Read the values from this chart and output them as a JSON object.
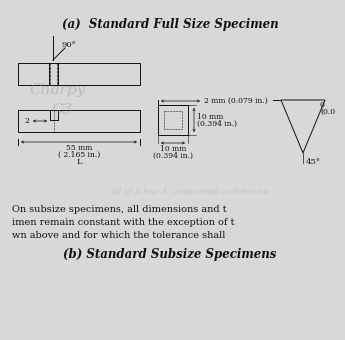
{
  "title_a": "(a)  Standard Full Size Specimen",
  "title_b": "(b) Standard Subsize Specimens",
  "body_line1": "On subsize specimens, all dimensions and t",
  "body_line2": "imen remain constant with the exception of t",
  "body_line3": "wn above and for which the tolerance shall",
  "watermark_line1": "Charpy",
  "watermark_line2": "C3",
  "watermark_faint": "all of A bne A ,aneiαoneib esibdue no",
  "bg_color": "#d8d8d8",
  "fg_color": "#111111",
  "label_90": "90°",
  "label_55mm": "55 mm",
  "label_55in": "( 2.165 in.)",
  "label_L": "L",
  "label_2": "2",
  "label_2mm": "2 mm (0.079 in.)",
  "label_10mm_h": "10 mm",
  "label_10mm_h2": "(0.394 in.)",
  "label_10mm_w": "10 mm",
  "label_10mm_w2": "(0.394 in.)",
  "label_45": "45°",
  "label_r1": "0",
  "label_r2": "(0.0",
  "font_title": 8.5,
  "font_body": 7.0,
  "font_label": 5.5,
  "font_watermark": 11
}
